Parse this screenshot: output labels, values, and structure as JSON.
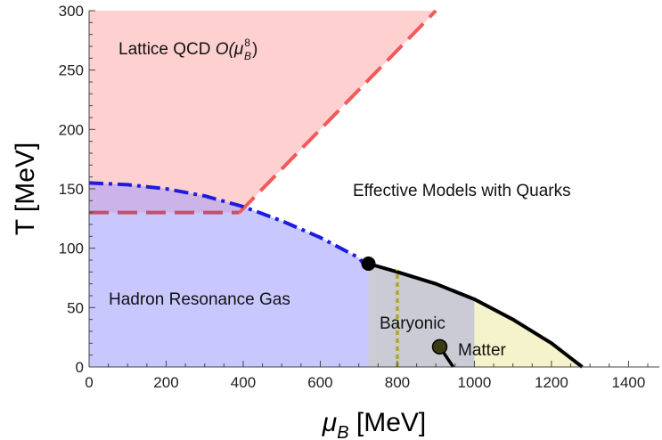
{
  "chart_data": {
    "type": "area",
    "title": "",
    "xlabel_main": "μ",
    "xlabel_sub": "B",
    "xlabel_unit": " [MeV]",
    "ylabel": "T [MeV]",
    "xlim": [
      0,
      1480
    ],
    "ylim": [
      0,
      300
    ],
    "xticks": [
      0,
      200,
      400,
      600,
      800,
      1000,
      1200,
      1400
    ],
    "yticks": [
      0,
      50,
      100,
      150,
      200,
      250,
      300
    ],
    "grid": false,
    "colors": {
      "lattice_fill": "#ffd0d0",
      "hrg_fill": "#c8c8ff",
      "overlap_fill": "#cdb4e8",
      "baryonic_fill": "#cbcbd6",
      "matter_fill": "#f5f3cc",
      "lattice_line": "#f05a5a",
      "overlap_line": "#c0506e",
      "crossover_line": "#1c1ce0",
      "transition_line": "#000000",
      "vacuum_line": "#b3a81c",
      "critical_point": "#000000",
      "matter_point": "#3a3a10"
    },
    "regions": [
      {
        "label": "Lattice QCD",
        "label_suffix": "O(μ",
        "label_sup": "8",
        "label_sub": "B",
        "label_close": ")"
      },
      {
        "label": "Effective Models with Quarks"
      },
      {
        "label": "Hadron Resonance Gas"
      },
      {
        "label": "Baryonic"
      },
      {
        "label": "Matter"
      }
    ],
    "series": [
      {
        "style": "dashed",
        "x": [
          390,
          900
        ],
        "y": [
          130,
          300
        ]
      },
      {
        "style": "dashed",
        "x": [
          0,
          390
        ],
        "y": [
          130,
          130
        ]
      },
      {
        "style": "dash-dot",
        "x": [
          0,
          100,
          200,
          300,
          400,
          500,
          600,
          700,
          725
        ],
        "y": [
          155,
          153.5,
          150,
          144,
          135,
          123,
          109,
          92,
          82
        ]
      },
      {
        "style": "solid",
        "x": [
          725,
          800,
          900,
          1000,
          1100,
          1200,
          1280
        ],
        "y": [
          87,
          80,
          70,
          57,
          40,
          20,
          0
        ]
      },
      {
        "style": "dotted",
        "x": [
          800,
          800
        ],
        "y": [
          0,
          82
        ]
      },
      {
        "style": "solid",
        "x": [
          910,
          945
        ],
        "y": [
          17,
          0
        ]
      }
    ],
    "points": [
      {
        "x": 725,
        "y": 87
      },
      {
        "x": 910,
        "y": 17
      }
    ]
  }
}
